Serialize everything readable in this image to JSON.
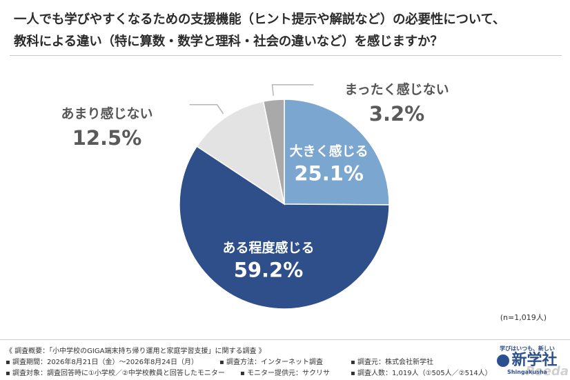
{
  "header": {
    "title_line1": "一人でも学びやすくなるための支援機能（ヒント提示や解説など）の必要性について、",
    "title_line2": "教科による違い（特に算数・数学と理科・社会の違いなど）を感じますか？"
  },
  "chart_data": {
    "type": "pie",
    "start": "12 o'clock, clockwise",
    "slices": [
      {
        "label": "大きく感じる",
        "value": 25.1,
        "display": "25.1%",
        "color": "#7ba6cf"
      },
      {
        "label": "ある程度感じる",
        "value": 59.2,
        "display": "59.2%",
        "color": "#2e4f8a"
      },
      {
        "label": "あまり感じない",
        "value": 12.5,
        "display": "12.5%",
        "color": "#e3e3e3"
      },
      {
        "label": "まったく感じない",
        "value": 3.2,
        "display": "3.2%",
        "color": "#a9a9a9"
      }
    ]
  },
  "n_count": "(n=1,019人)",
  "footer": {
    "line1": "《 調査概要：「小中学校のGIGA端末持ち帰り運用と家庭学習支援」に関する調査 》",
    "line2a": "▪ 調査期間：2026年8月21日（金）～2026年8月24日（月）",
    "line2b": "▪ 調査方法：インターネット調査",
    "line2c": "▪ 調査元：株式会社新学社",
    "line3a": "▪ 調査対象：調査回答時に①小学校／②中学校教員と回答したモニター",
    "line3b": "▪ モニター提供元：サクリサ",
    "line3c": "▪ 調査人数：1,019人（①505人／②514人）"
  },
  "brand": {
    "tagline": "学びはいつも、新しい",
    "name": "新学社",
    "roman": "Shingakusha"
  },
  "watermark": "Reeda"
}
